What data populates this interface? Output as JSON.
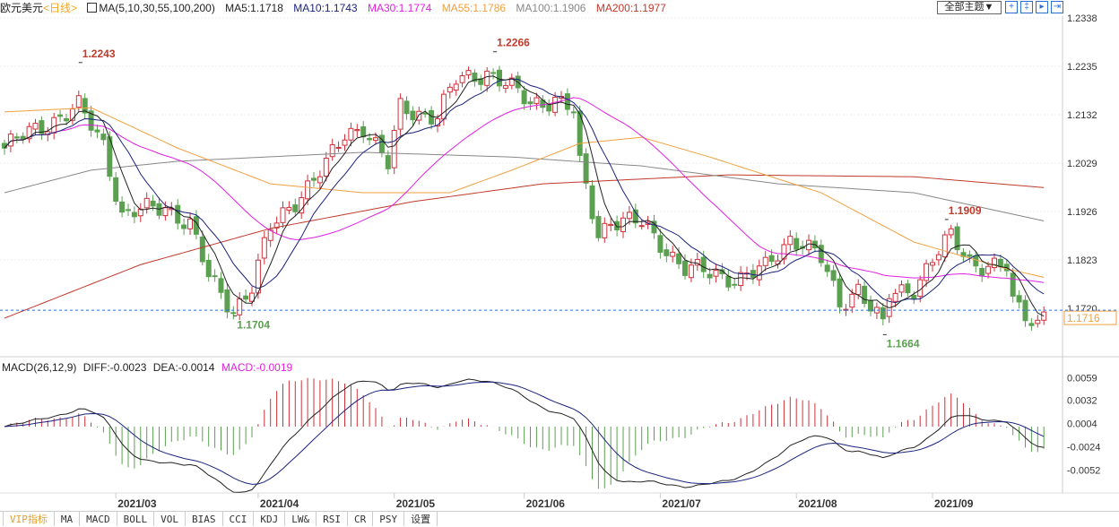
{
  "header": {
    "symbol": "欧元美元",
    "period": "<日线>",
    "ma_title": "MA(5,10,30,55,100,200)",
    "ma_values": [
      {
        "label": "MA5:1.1718",
        "color": "#222222"
      },
      {
        "label": "MA10:1.1743",
        "color": "#1a237e"
      },
      {
        "label": "MA30:1.1774",
        "color": "#e020e0"
      },
      {
        "label": "MA55:1.1786",
        "color": "#f0a040"
      },
      {
        "label": "MA100:1.1906",
        "color": "#888888"
      },
      {
        "label": "MA200:1.1977",
        "color": "#c0392b"
      }
    ],
    "theme_select": "全部主题▼",
    "tool_icons": [
      "crosshair-icon",
      "zoom-fit-icon",
      "step-icon",
      "goto-end-icon"
    ]
  },
  "macd_header": {
    "title": "MACD(26,12,9)",
    "diff": "DIFF:-0.0023",
    "dea": "DEA:-0.0014",
    "macd": "MACD:-0.0019"
  },
  "tabs": [
    "VIP指标",
    "MA",
    "MACD",
    "BOLL",
    "VOL",
    "BIAS",
    "CCI",
    "KDJ",
    "LW&",
    "RSI",
    "CR",
    "PSY",
    "设置"
  ],
  "colors": {
    "up": "#d0303a",
    "down": "#5aa050",
    "ma5": "#222222",
    "ma10": "#1a237e",
    "ma30": "#e020e0",
    "ma55": "#f0a040",
    "ma100": "#888888",
    "ma200": "#c0392b",
    "current": "#2a6fd6",
    "current_label": "#f0a040"
  },
  "chart_data": {
    "type": "candlestick",
    "price_ticks": [
      "1.2338",
      "1.2235",
      "1.2132",
      "1.2029",
      "1.1926",
      "1.1823",
      "1.1720"
    ],
    "ylim": [
      1.164,
      1.2338
    ],
    "macd_ticks": [
      "0.0059",
      "0.0032",
      "0.0004",
      "-0.0024",
      "-0.0052"
    ],
    "date_labels": [
      [
        "2021-03-01",
        "2021/03"
      ],
      [
        "2021-04-01",
        "2021/04"
      ],
      [
        "2021-05-03",
        "2021/05"
      ],
      [
        "2021-06-01",
        "2021/06"
      ],
      [
        "2021-07-01",
        "2021/07"
      ],
      [
        "2021-08-02",
        "2021/08"
      ],
      [
        "2021-09-01",
        "2021/09"
      ]
    ],
    "close_path": [
      [
        "2021-02-03",
        1.2061
      ],
      [
        "2021-02-11",
        1.2109
      ],
      [
        "2021-02-19",
        1.2147
      ],
      [
        "2021-02-25",
        1.2071
      ],
      [
        "2021-03-02",
        1.1918
      ],
      [
        "2021-03-11",
        1.1937
      ],
      [
        "2021-03-17",
        1.1899
      ],
      [
        "2021-03-22",
        1.1785
      ],
      [
        "2021-03-26",
        1.1718
      ],
      [
        "2021-03-31",
        1.1766
      ],
      [
        "2021-04-05",
        1.189
      ],
      [
        "2021-04-12",
        1.1966
      ],
      [
        "2021-04-16",
        1.2023
      ],
      [
        "2021-04-21",
        1.209
      ],
      [
        "2021-04-26",
        1.2109
      ],
      [
        "2021-04-30",
        1.2023
      ],
      [
        "2021-05-04",
        1.2147
      ],
      [
        "2021-05-12",
        1.2128
      ],
      [
        "2021-05-17",
        1.2204
      ],
      [
        "2021-05-24",
        1.2224
      ],
      [
        "2021-05-27",
        1.2195
      ],
      [
        "2021-06-02",
        1.2157
      ],
      [
        "2021-06-08",
        1.2166
      ],
      [
        "2021-06-11",
        1.2138
      ],
      [
        "2021-06-14",
        1.2023
      ],
      [
        "2021-06-17",
        1.188
      ],
      [
        "2021-06-21",
        1.1909
      ],
      [
        "2021-06-28",
        1.1899
      ],
      [
        "2021-07-01",
        1.1861
      ],
      [
        "2021-07-07",
        1.1804
      ],
      [
        "2021-07-13",
        1.1794
      ],
      [
        "2021-07-20",
        1.1785
      ],
      [
        "2021-07-26",
        1.1804
      ],
      [
        "2021-07-30",
        1.1871
      ],
      [
        "2021-08-03",
        1.1861
      ],
      [
        "2021-08-06",
        1.1823
      ],
      [
        "2021-08-11",
        1.1728
      ],
      [
        "2021-08-16",
        1.1766
      ],
      [
        "2021-08-20",
        1.168
      ],
      [
        "2021-08-23",
        1.1747
      ],
      [
        "2021-08-27",
        1.1766
      ],
      [
        "2021-09-01",
        1.1823
      ],
      [
        "2021-09-06",
        1.1871
      ],
      [
        "2021-09-09",
        1.1823
      ],
      [
        "2021-09-13",
        1.1813
      ],
      [
        "2021-09-17",
        1.1804
      ],
      [
        "2021-09-20",
        1.1728
      ],
      [
        "2021-09-24",
        1.169
      ],
      [
        "2021-09-27",
        1.1716
      ]
    ],
    "ma55": [
      [
        "2021-02-03",
        1.2138
      ],
      [
        "2021-02-23",
        1.2147
      ],
      [
        "2021-03-15",
        1.2061
      ],
      [
        "2021-04-05",
        1.1985
      ],
      [
        "2021-04-26",
        1.1966
      ],
      [
        "2021-05-14",
        1.1966
      ],
      [
        "2021-05-28",
        1.2014
      ],
      [
        "2021-06-14",
        1.2071
      ],
      [
        "2021-06-28",
        1.2084
      ],
      [
        "2021-07-13",
        1.2042
      ],
      [
        "2021-08-06",
        1.1966
      ],
      [
        "2021-08-27",
        1.1861
      ],
      [
        "2021-09-17",
        1.1804
      ],
      [
        "2021-09-27",
        1.1786
      ]
    ],
    "ma100": [
      [
        "2021-02-03",
        1.1966
      ],
      [
        "2021-02-23",
        1.2014
      ],
      [
        "2021-03-15",
        1.2033
      ],
      [
        "2021-04-26",
        1.2052
      ],
      [
        "2021-05-28",
        1.2042
      ],
      [
        "2021-06-28",
        1.2023
      ],
      [
        "2021-07-28",
        1.1985
      ],
      [
        "2021-08-27",
        1.1966
      ],
      [
        "2021-09-27",
        1.1906
      ]
    ],
    "ma200": [
      [
        "2021-02-03",
        1.1699
      ],
      [
        "2021-03-05",
        1.1813
      ],
      [
        "2021-04-05",
        1.189
      ],
      [
        "2021-05-06",
        1.1947
      ],
      [
        "2021-06-04",
        1.1985
      ],
      [
        "2021-07-17",
        1.2004
      ],
      [
        "2021-08-27",
        1.2
      ],
      [
        "2021-09-27",
        1.1977
      ]
    ],
    "annotations": [
      {
        "date": "2021-02-19",
        "price": 1.2243,
        "label": "1.2243",
        "kind": "high"
      },
      {
        "date": "2021-05-25",
        "price": 1.2266,
        "label": "1.2266",
        "kind": "high"
      },
      {
        "date": "2021-09-03",
        "price": 1.1909,
        "label": "1.1909",
        "kind": "high"
      },
      {
        "date": "2021-03-26",
        "price": 1.1704,
        "label": "1.1704",
        "kind": "low"
      },
      {
        "date": "2021-08-20",
        "price": 1.1664,
        "label": "1.1664",
        "kind": "low"
      }
    ],
    "current_price": "1.1716"
  }
}
